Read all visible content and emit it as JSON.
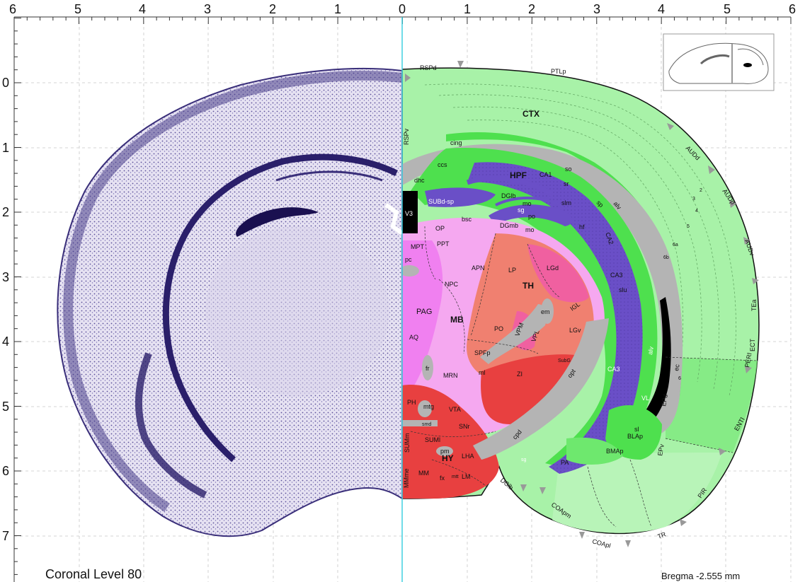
{
  "caption": "Coronal Level 80",
  "bregma": "Bregma -2.555 mm",
  "top_axis": [
    "6",
    "5",
    "4",
    "3",
    "2",
    "1",
    "0",
    "1",
    "2",
    "3",
    "4",
    "5",
    "6"
  ],
  "left_axis": [
    "0",
    "1",
    "2",
    "3",
    "4",
    "5",
    "6",
    "7"
  ],
  "colors": {
    "cortex": "#a8f2a8",
    "hippocampus_green": "#4ee04e",
    "hpf_purple": "#6a4fc7",
    "fiber_gray": "#b4b4b4",
    "thalamus_salmon": "#f08070",
    "thalamus_pink": "#f060a0",
    "midbrain_pink": "#f5a8f0",
    "pag_magenta": "#f080f0",
    "hypothalamus_red": "#e84040",
    "ventricle_black": "#000000",
    "midline": "#40d0e0",
    "nissl": "#3a2f7a"
  },
  "major_labels": {
    "ctx": "CTX",
    "hpf": "HPF",
    "th": "TH",
    "mb": "MB",
    "hy": "HY"
  },
  "region_labels": {
    "rspd": "RSPd",
    "rspv": "RSPv",
    "ptlp": "PTLp",
    "audd": "AUDd",
    "audp": "AUDp",
    "audv": "AUDv",
    "tea": "TEa",
    "ect": "ECT",
    "peri": "PERI",
    "enti": "ENTl",
    "pir": "PIR",
    "tr": "TR",
    "coapl": "COApl",
    "coapm": "COApm",
    "dglb_bottom": "DGlb",
    "cing": "cing",
    "ccs": "ccs",
    "dhc": "dhc",
    "subd_sp": "SUBd-sp",
    "sr": "sr",
    "so": "so",
    "ca1": "CA1",
    "ca2": "CA2",
    "ca3": "CA3",
    "ca3_lower": "CA3",
    "slu": "slu",
    "dglb": "DGlb",
    "dgmb": "DGmb",
    "mo": "mo",
    "mo2": "mo",
    "slm": "slm",
    "po_small": "po",
    "sg": "sg",
    "hf": "hf",
    "sp": "sp",
    "alv": "alv",
    "alv2": "alv",
    "ec": "ec",
    "bsc": "bsc",
    "v3": "V3",
    "op": "OP",
    "mpt": "MPT",
    "ppt": "PPT",
    "pc": "pc",
    "apn": "APN",
    "npc": "NPC",
    "lp": "LP",
    "lgd": "LGd",
    "igl": "IGL",
    "lgv": "LGv",
    "em": "em",
    "po": "PO",
    "vpm": "VPM",
    "vpl": "VPL",
    "spfp": "SPFp",
    "subg": "SubG",
    "pag": "PAG",
    "aq": "AQ",
    "fr": "fr",
    "mrn": "MRN",
    "ml": "ml",
    "zi": "ZI",
    "opt": "opt",
    "ph": "PH",
    "mtg": "mtg",
    "vta": "VTA",
    "smd": "smd",
    "sumi": "SUMl",
    "summ": "SUMm",
    "pm": "pm",
    "snr": "SNr",
    "cpd": "cpd",
    "lha": "LHA",
    "mm": "MM",
    "mmme": "MMme",
    "fx": "fx",
    "mtt": "mtt",
    "lm": "LM",
    "vl": "VL",
    "sl": "sl",
    "epd": "EPd",
    "epv": "EPv",
    "blap": "BLAp",
    "bmap": "BMAp",
    "pa": "PA",
    "sgl": "sg",
    "l6a": "6a",
    "l6b": "6b"
  },
  "layer_numbers": [
    "2",
    "3",
    "4",
    "5",
    "6"
  ]
}
